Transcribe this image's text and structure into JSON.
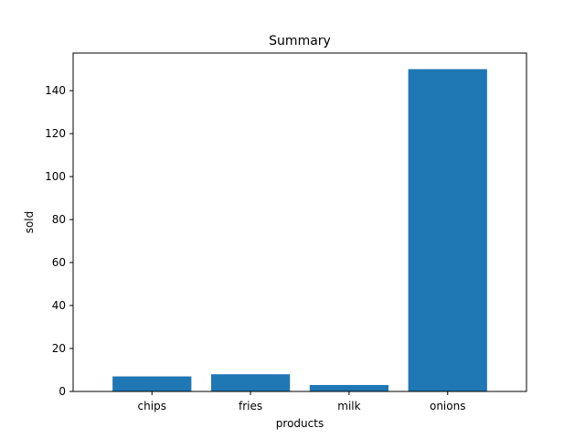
{
  "chart_data": {
    "type": "bar",
    "title": "Summary",
    "xlabel": "products",
    "ylabel": "sold",
    "categories": [
      "chips",
      "fries",
      "milk",
      "onions"
    ],
    "values": [
      7,
      8,
      3,
      150
    ],
    "ylim": [
      0,
      157.5
    ],
    "yticks": [
      0,
      20,
      40,
      60,
      80,
      100,
      120,
      140
    ],
    "grid": false,
    "legend": "none",
    "colors": {
      "bar": "#1f77b4",
      "axes": "#000000",
      "background": "#ffffff"
    }
  }
}
